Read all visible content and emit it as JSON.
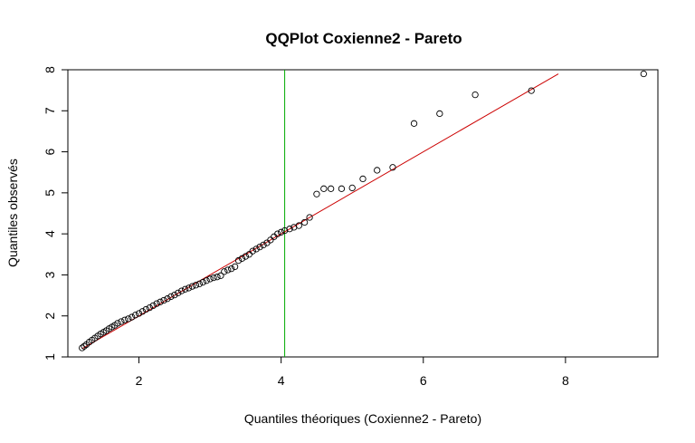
{
  "chart_data": {
    "type": "scatter",
    "title": "QQPlot Coxienne2 - Pareto",
    "xlabel": "Quantiles théoriques (Coxienne2 - Pareto)",
    "ylabel": "Quantiles observés",
    "xlim": [
      1.0,
      9.3
    ],
    "ylim": [
      1.0,
      8.0
    ],
    "x_ticks": [
      2,
      4,
      6,
      8
    ],
    "y_ticks": [
      1,
      2,
      3,
      4,
      5,
      6,
      7,
      8
    ],
    "x_tick_labels": [
      "2",
      "4",
      "6",
      "8"
    ],
    "y_tick_labels": [
      "1",
      "2",
      "3",
      "4",
      "5",
      "6",
      "7",
      "8"
    ],
    "grid": false,
    "colors": {
      "points": "#000000",
      "reference_line": "#cc0000",
      "vertical_line": "#00aa00"
    },
    "points": {
      "x": [
        1.2,
        1.23,
        1.26,
        1.3,
        1.34,
        1.38,
        1.42,
        1.46,
        1.5,
        1.54,
        1.58,
        1.62,
        1.66,
        1.7,
        1.75,
        1.8,
        1.85,
        1.9,
        1.95,
        2.0,
        2.05,
        2.1,
        2.15,
        2.2,
        2.25,
        2.3,
        2.35,
        2.4,
        2.45,
        2.5,
        2.55,
        2.6,
        2.65,
        2.7,
        2.75,
        2.8,
        2.85,
        2.9,
        2.95,
        3.0,
        3.05,
        3.1,
        3.15,
        3.2,
        3.25,
        3.3,
        3.35,
        3.4,
        3.45,
        3.5,
        3.55,
        3.6,
        3.65,
        3.7,
        3.75,
        3.8,
        3.85,
        3.9,
        3.95,
        4.0,
        4.05,
        4.12,
        4.18,
        4.25,
        4.33,
        4.4,
        4.5,
        4.6,
        4.7,
        4.85,
        5.0,
        5.15,
        5.35,
        5.57,
        5.87,
        6.23,
        6.73,
        7.52,
        9.1
      ],
      "y": [
        1.22,
        1.26,
        1.3,
        1.36,
        1.41,
        1.46,
        1.51,
        1.56,
        1.6,
        1.64,
        1.69,
        1.73,
        1.77,
        1.82,
        1.86,
        1.9,
        1.93,
        1.97,
        2.02,
        2.06,
        2.11,
        2.16,
        2.2,
        2.25,
        2.3,
        2.34,
        2.38,
        2.42,
        2.47,
        2.51,
        2.56,
        2.61,
        2.65,
        2.68,
        2.72,
        2.75,
        2.78,
        2.82,
        2.86,
        2.9,
        2.93,
        2.95,
        2.98,
        3.08,
        3.12,
        3.15,
        3.2,
        3.35,
        3.4,
        3.45,
        3.5,
        3.58,
        3.63,
        3.68,
        3.73,
        3.78,
        3.85,
        3.93,
        4.0,
        4.04,
        4.08,
        4.12,
        4.16,
        4.2,
        4.28,
        4.4,
        4.97,
        5.1,
        5.1,
        5.1,
        5.12,
        5.34,
        5.55,
        5.62,
        6.69,
        6.93,
        7.39,
        7.49,
        7.9
      ]
    },
    "reference_line": {
      "x": [
        1.2,
        7.9
      ],
      "y": [
        1.2,
        7.9
      ]
    },
    "vertical_line_x": 4.05
  }
}
